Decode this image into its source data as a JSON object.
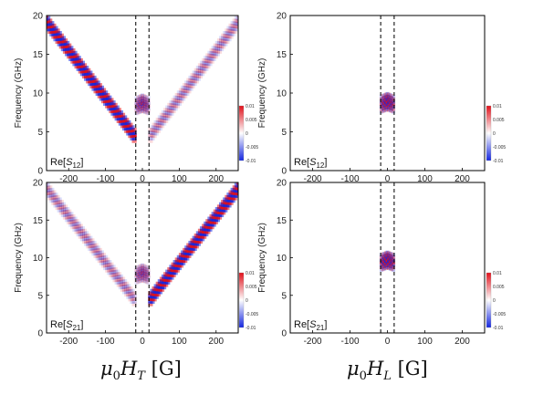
{
  "chart_data": [
    {
      "type": "heatmap",
      "panel_label": {
        "prefix": "Re[",
        "symbol": "S",
        "subscript": "12",
        "suffix": "]"
      },
      "ylabel": "Frequency (GHz)",
      "xlim": [
        -260,
        260
      ],
      "ylim": [
        0,
        20
      ],
      "xticks": [
        -200,
        -100,
        0,
        100,
        200
      ],
      "yticks": [
        0,
        5,
        10,
        15,
        20
      ],
      "dashed_lines_x": [
        -18,
        18
      ],
      "color_range": [
        -0.01,
        0.01
      ],
      "colorbar_ticks": [
        "0.01",
        "0.005",
        "0",
        "-0.005",
        "-0.01"
      ],
      "features": {
        "side_branches": true,
        "branch_strength": 1.0,
        "left_strong": true,
        "right_strong": false,
        "center_blob_freq": 8.7,
        "center_blob_strength": 0.6
      }
    },
    {
      "type": "heatmap",
      "panel_label": {
        "prefix": "Re[",
        "symbol": "S",
        "subscript": "12",
        "suffix": "]"
      },
      "ylabel": "Frequency (GHz)",
      "xlim": [
        -260,
        260
      ],
      "ylim": [
        0,
        20
      ],
      "xticks": [
        -200,
        -100,
        0,
        100,
        200
      ],
      "yticks": [
        0,
        5,
        10,
        15,
        20
      ],
      "dashed_lines_x": [
        -18,
        18
      ],
      "color_range": [
        -0.01,
        0.01
      ],
      "colorbar_ticks": [
        "0.01",
        "0.005",
        "0",
        "-0.005",
        "-0.01"
      ],
      "features": {
        "side_branches": false,
        "center_blob_freq": 8.9,
        "center_blob_strength": 0.9
      }
    },
    {
      "type": "heatmap",
      "panel_label": {
        "prefix": "Re[",
        "symbol": "S",
        "subscript": "21",
        "suffix": "]"
      },
      "ylabel": "Frequency (GHz)",
      "xlim": [
        -260,
        260
      ],
      "ylim": [
        0,
        20
      ],
      "xticks": [
        -200,
        -100,
        0,
        100,
        200
      ],
      "yticks": [
        0,
        5,
        10,
        15,
        20
      ],
      "dashed_lines_x": [
        -18,
        18
      ],
      "color_range": [
        -0.01,
        0.01
      ],
      "colorbar_ticks": [
        "0.01",
        "0.005",
        "0",
        "-0.005",
        "-0.01"
      ],
      "features": {
        "side_branches": true,
        "branch_strength": 1.0,
        "left_strong": false,
        "right_strong": true,
        "center_blob_freq": 8.0,
        "center_blob_strength": 0.5
      }
    },
    {
      "type": "heatmap",
      "panel_label": {
        "prefix": "Re[",
        "symbol": "S",
        "subscript": "21",
        "suffix": "]"
      },
      "ylabel": "Frequency (GHz)",
      "xlim": [
        -260,
        260
      ],
      "ylim": [
        0,
        20
      ],
      "xticks": [
        -200,
        -100,
        0,
        100,
        200
      ],
      "yticks": [
        0,
        5,
        10,
        15,
        20
      ],
      "dashed_lines_x": [
        -18,
        18
      ],
      "color_range": [
        -0.01,
        0.01
      ],
      "colorbar_ticks": [
        "0.01",
        "0.005",
        "0",
        "-0.005",
        "-0.01"
      ],
      "features": {
        "side_branches": false,
        "center_blob_freq": 9.7,
        "center_blob_strength": 1.0
      }
    }
  ],
  "x_captions": [
    {
      "prefix": "μ",
      "prefix_sub": "0",
      "symbol": "H",
      "symbol_sub": "T",
      "unit": "[G]"
    },
    {
      "prefix": "μ",
      "prefix_sub": "0",
      "symbol": "H",
      "symbol_sub": "L",
      "unit": "[G]"
    }
  ],
  "colors": {
    "positive": "#e0101a",
    "negative": "#1426e0",
    "zero": "#ffffff"
  }
}
